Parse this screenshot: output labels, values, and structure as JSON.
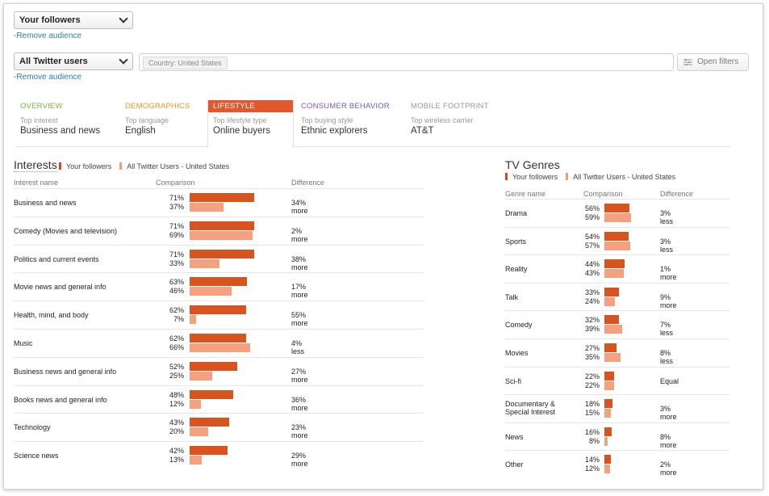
{
  "audience_select_1": {
    "value": "Your followers",
    "remove_label": "-Remove audience"
  },
  "audience_select_2": {
    "value": "All Twitter users",
    "remove_label": "-Remove audience"
  },
  "filter_chip": "Country: United States",
  "open_filters_label": "Open filters",
  "tabs": [
    {
      "title": "OVERVIEW",
      "subtitle": "Top interest",
      "value": "Business and news",
      "color": "#7cb342"
    },
    {
      "title": "DEMOGRAPHICS",
      "subtitle": "Top language",
      "value": "English",
      "color": "#f0932b"
    },
    {
      "title": "LIFESTYLE",
      "subtitle": "Top lifestyle type",
      "value": "Online buyers",
      "color": "#e0582b",
      "active": true
    },
    {
      "title": "CONSUMER BEHAVIOR",
      "subtitle": "Top buying style",
      "value": "Ethnic explorers",
      "color": "#7e57c2"
    },
    {
      "title": "MOBILE FOOTPRINT",
      "subtitle": "Top wireless carrier",
      "value": "AT&T",
      "color": "#8d9aa6"
    }
  ],
  "colors": {
    "your_followers": "#d9531e",
    "all_users": "#f5a07f"
  },
  "interests": {
    "title": "Interests",
    "legend_your": "Your followers",
    "legend_all": "All Twitter Users - United States",
    "col_name": "Interest name",
    "col_comparison": "Comparison",
    "col_difference": "Difference",
    "rows": [
      {
        "name": "Business and news",
        "your": 71,
        "all": 37,
        "your_label": "71%",
        "all_label": "37%",
        "difference": "34% more"
      },
      {
        "name": "Comedy (Movies and television)",
        "your": 71,
        "all": 69,
        "your_label": "71%",
        "all_label": "69%",
        "difference": "2% more"
      },
      {
        "name": "Politics and current events",
        "your": 71,
        "all": 33,
        "your_label": "71%",
        "all_label": "33%",
        "difference": "38% more"
      },
      {
        "name": "Movie news and general info",
        "your": 63,
        "all": 46,
        "your_label": "63%",
        "all_label": "46%",
        "difference": "17% more"
      },
      {
        "name": "Health, mind, and body",
        "your": 62,
        "all": 7,
        "your_label": "62%",
        "all_label": "7%",
        "difference": "55% more"
      },
      {
        "name": "Music",
        "your": 62,
        "all": 66,
        "your_label": "62%",
        "all_label": "66%",
        "difference": "4% less"
      },
      {
        "name": "Business news and general info",
        "your": 52,
        "all": 25,
        "your_label": "52%",
        "all_label": "25%",
        "difference": "27% more"
      },
      {
        "name": "Books news and general info",
        "your": 48,
        "all": 12,
        "your_label": "48%",
        "all_label": "12%",
        "difference": "36% more"
      },
      {
        "name": "Technology",
        "your": 43,
        "all": 20,
        "your_label": "43%",
        "all_label": "20%",
        "difference": "23% more"
      },
      {
        "name": "Science news",
        "your": 42,
        "all": 13,
        "your_label": "42%",
        "all_label": "13%",
        "difference": "29% more"
      }
    ]
  },
  "tv_genres": {
    "title": "TV Genres",
    "legend_your": "Your followers",
    "legend_all": "All Twitter Users - United States",
    "col_name": "Genre name",
    "col_comparison": "Comparison",
    "col_difference": "Difference",
    "rows": [
      {
        "name": "Drama",
        "your": 56,
        "all": 59,
        "your_label": "56%",
        "all_label": "59%",
        "difference": "3% less"
      },
      {
        "name": "Sports",
        "your": 54,
        "all": 57,
        "your_label": "54%",
        "all_label": "57%",
        "difference": "3% less"
      },
      {
        "name": "Reality",
        "your": 44,
        "all": 43,
        "your_label": "44%",
        "all_label": "43%",
        "difference": "1% more"
      },
      {
        "name": "Talk",
        "your": 33,
        "all": 24,
        "your_label": "33%",
        "all_label": "24%",
        "difference": "9% more"
      },
      {
        "name": "Comedy",
        "your": 32,
        "all": 39,
        "your_label": "32%",
        "all_label": "39%",
        "difference": "7% less"
      },
      {
        "name": "Movies",
        "your": 27,
        "all": 35,
        "your_label": "27%",
        "all_label": "35%",
        "difference": "8% less"
      },
      {
        "name": "Sci-fi",
        "your": 22,
        "all": 22,
        "your_label": "22%",
        "all_label": "22%",
        "difference": "Equal"
      },
      {
        "name": "Documentary & Special Interest",
        "your": 18,
        "all": 15,
        "your_label": "18%",
        "all_label": "15%",
        "difference": "3% more"
      },
      {
        "name": "News",
        "your": 16,
        "all": 8,
        "your_label": "16%",
        "all_label": "8%",
        "difference": "8% more"
      },
      {
        "name": "Other",
        "your": 14,
        "all": 12,
        "your_label": "14%",
        "all_label": "12%",
        "difference": "2% more"
      }
    ]
  }
}
